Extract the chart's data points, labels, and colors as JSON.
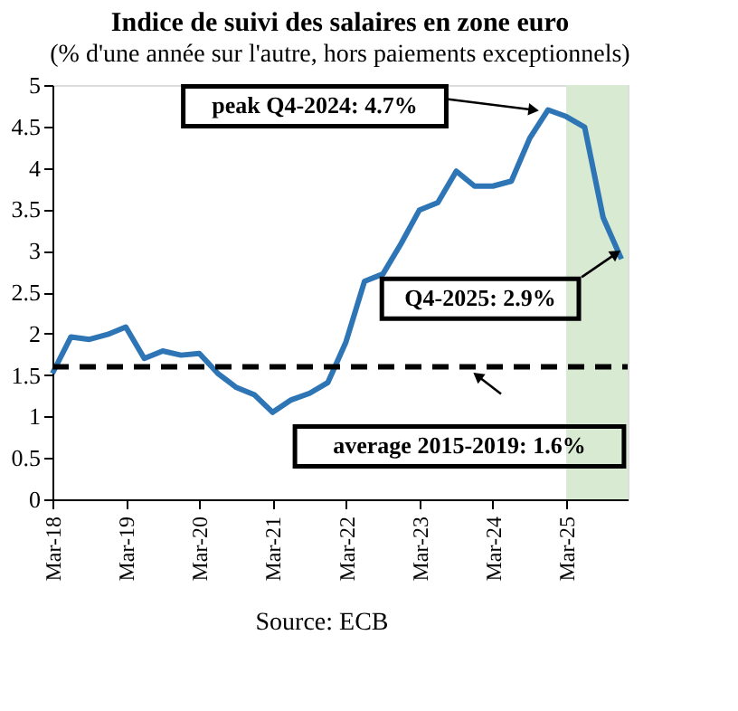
{
  "chart_data": {
    "type": "line",
    "title": "Indice de suivi des salaires en zone euro",
    "subtitle": "(% d'une année sur l'autre, hors paiements exceptionnels)",
    "x": [
      "2018-03",
      "2018-06",
      "2018-09",
      "2018-12",
      "2019-03",
      "2019-06",
      "2019-09",
      "2019-12",
      "2020-03",
      "2020-06",
      "2020-09",
      "2020-12",
      "2021-03",
      "2021-06",
      "2021-09",
      "2021-12",
      "2022-03",
      "2022-06",
      "2022-09",
      "2022-12",
      "2023-03",
      "2023-06",
      "2023-09",
      "2023-12",
      "2024-03",
      "2024-06",
      "2024-09",
      "2024-12",
      "2025-03",
      "2025-06",
      "2025-09",
      "2025-12"
    ],
    "series": [
      {
        "color": "#2e75b6",
        "values": [
          1.52,
          1.96,
          1.93,
          1.99,
          2.08,
          1.7,
          1.79,
          1.74,
          1.76,
          1.52,
          1.35,
          1.26,
          1.05,
          1.2,
          1.28,
          1.41,
          1.9,
          2.63,
          2.72,
          3.09,
          3.49,
          3.58,
          3.96,
          3.78,
          3.78,
          3.84,
          4.36,
          4.7,
          4.62,
          4.49,
          3.4,
          2.9
        ]
      }
    ],
    "xlim": [
      "2018-03",
      "2026-01"
    ],
    "xticks": [
      {
        "value": "2018-03",
        "label": "Mar-18"
      },
      {
        "value": "2019-03",
        "label": "Mar-19"
      },
      {
        "value": "2020-03",
        "label": "Mar-20"
      },
      {
        "value": "2021-03",
        "label": "Mar-21"
      },
      {
        "value": "2022-03",
        "label": "Mar-22"
      },
      {
        "value": "2023-03",
        "label": "Mar-23"
      },
      {
        "value": "2024-03",
        "label": "Mar-24"
      },
      {
        "value": "2025-03",
        "label": "Mar-25"
      }
    ],
    "ylim": [
      0,
      5
    ],
    "yticks": [
      0,
      0.5,
      1,
      1.5,
      2,
      2.5,
      3,
      3.5,
      4,
      4.5,
      5
    ],
    "grid": false,
    "marker": "none",
    "line_style": "solid",
    "ref_lines": [
      {
        "axis": "y",
        "value": 1.6,
        "label": "average 2015-2019: 1.6%",
        "color": "#000000",
        "line_style": "dashed"
      }
    ],
    "bands": [
      {
        "axis": "x",
        "from": "2025-03",
        "to": "2026-01",
        "color": "#d9ead3"
      }
    ],
    "annotations": [
      {
        "text": "peak Q4-2024: 4.7%",
        "x": "2024-12",
        "y": 4.7
      },
      {
        "text": "Q4-2025: 2.9%",
        "x": "2025-12",
        "y": 2.9
      },
      "Source: ECB"
    ]
  }
}
